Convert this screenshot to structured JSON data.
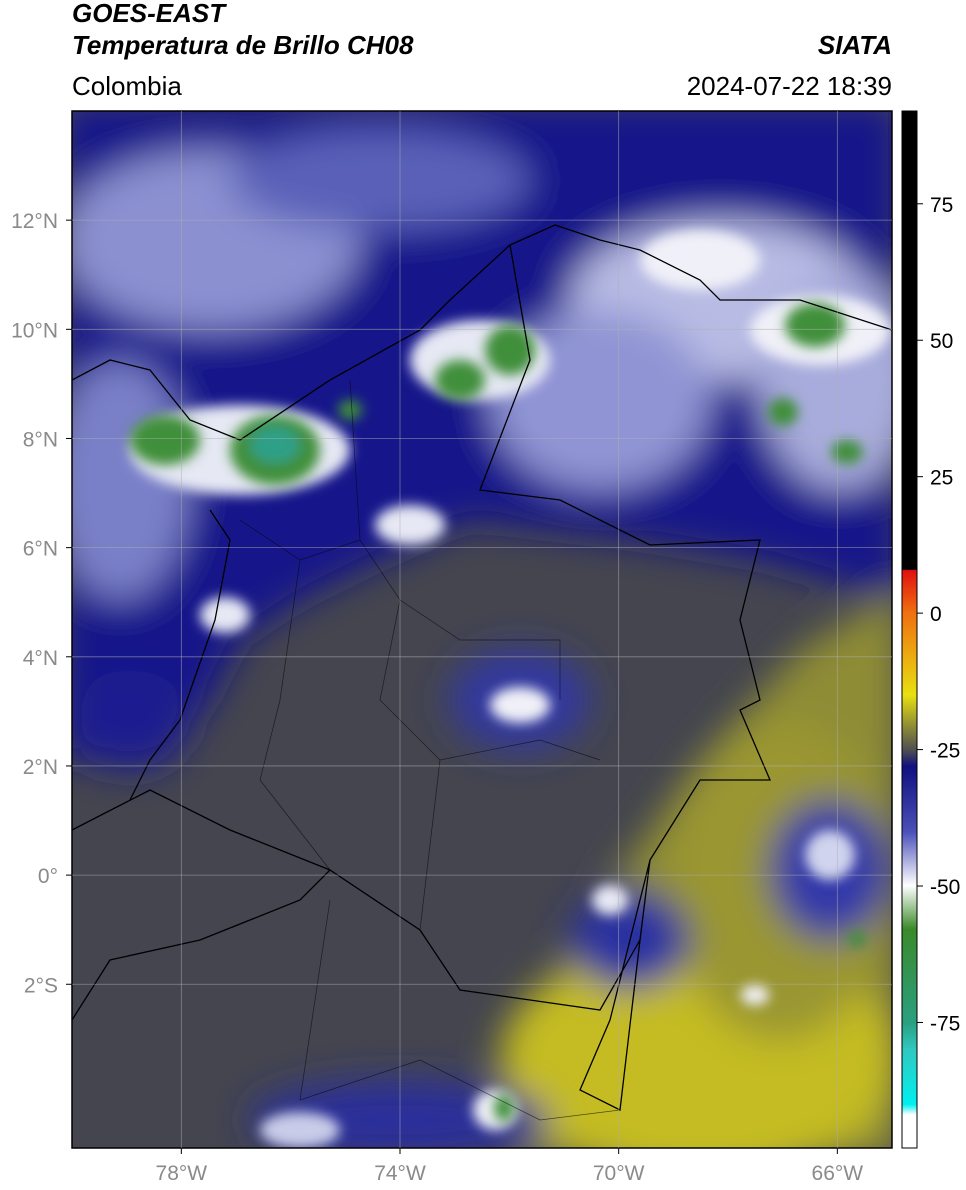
{
  "header": {
    "title": "GOES-EAST",
    "subtitle": "Temperatura de Brillo CH08",
    "source": "SIATA",
    "region": "Colombia",
    "timestamp": "2024-07-22 18:39"
  },
  "map": {
    "xlim": [
      -80,
      -65
    ],
    "ylim": [
      -5,
      14
    ],
    "xticks": [
      {
        "value": -78,
        "label": "78°W"
      },
      {
        "value": -74,
        "label": "74°W"
      },
      {
        "value": -70,
        "label": "70°W"
      },
      {
        "value": -66,
        "label": "66°W"
      }
    ],
    "yticks": [
      {
        "value": 12,
        "label": "12°N"
      },
      {
        "value": 10,
        "label": "10°N"
      },
      {
        "value": 8,
        "label": "8°N"
      },
      {
        "value": 6,
        "label": "6°N"
      },
      {
        "value": 4,
        "label": "4°N"
      },
      {
        "value": 2,
        "label": "2°N"
      },
      {
        "value": 0,
        "label": "0°"
      },
      {
        "value": -2,
        "label": "2°S"
      }
    ],
    "grid": true
  },
  "colorbar": {
    "lim": [
      -98,
      92
    ],
    "ticks": [
      75,
      50,
      25,
      0,
      -25,
      -50,
      -75
    ]
  }
}
